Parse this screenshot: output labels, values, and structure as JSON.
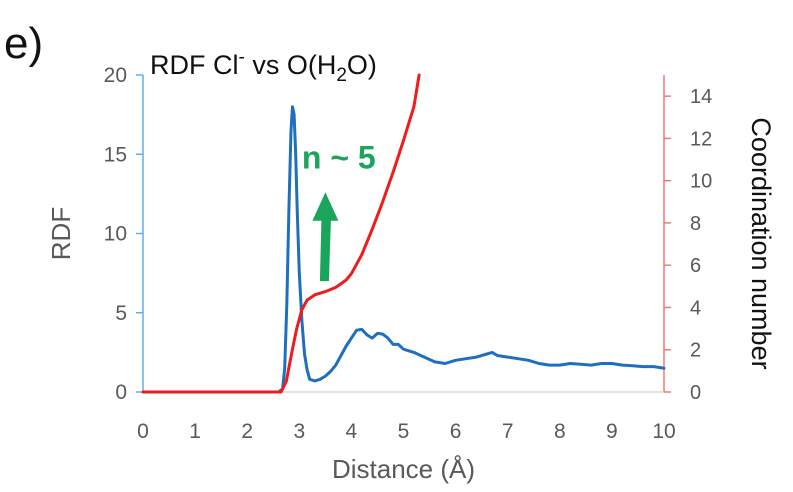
{
  "panel_label": "e)",
  "chart_data": {
    "type": "line",
    "title": {
      "prefix": "RDF Cl",
      "sup": "-",
      "middle": " vs O(H",
      "sub": "2",
      "suffix": "O)"
    },
    "xlabel": "Distance (Å)",
    "ylabel_left": "RDF",
    "ylabel_right": "Coordination number",
    "xlim": [
      0,
      10
    ],
    "ylim_left": [
      0,
      20
    ],
    "ylim_right": [
      0,
      15
    ],
    "x_ticks": [
      0,
      1,
      2,
      3,
      4,
      5,
      6,
      7,
      8,
      9,
      10
    ],
    "y_left_ticks": [
      0,
      5,
      10,
      15,
      20
    ],
    "y_right_ticks": [
      0,
      2,
      4,
      6,
      8,
      10,
      12,
      14
    ],
    "grid": false,
    "series": [
      {
        "axis": "left",
        "color": "#1f6fbf",
        "x": [
          2.6,
          2.68,
          2.72,
          2.76,
          2.8,
          2.84,
          2.87,
          2.9,
          2.93,
          2.96,
          3.0,
          3.05,
          3.1,
          3.15,
          3.2,
          3.3,
          3.4,
          3.5,
          3.6,
          3.7,
          3.8,
          3.9,
          4.0,
          4.1,
          4.2,
          4.3,
          4.4,
          4.5,
          4.6,
          4.7,
          4.8,
          4.9,
          5.0,
          5.2,
          5.4,
          5.6,
          5.8,
          6.0,
          6.2,
          6.4,
          6.6,
          6.7,
          6.8,
          7.0,
          7.2,
          7.4,
          7.6,
          7.8,
          8.0,
          8.2,
          8.4,
          8.6,
          8.8,
          9.0,
          9.2,
          9.4,
          9.6,
          9.8,
          10.0
        ],
        "y": [
          0,
          0.2,
          1.5,
          5.5,
          11.5,
          16.5,
          18.0,
          17.5,
          15.0,
          11.5,
          7.5,
          4.5,
          2.4,
          1.4,
          0.8,
          0.7,
          0.8,
          1.0,
          1.3,
          1.7,
          2.3,
          2.9,
          3.4,
          3.9,
          3.95,
          3.6,
          3.4,
          3.7,
          3.65,
          3.4,
          3.0,
          3.0,
          2.7,
          2.5,
          2.2,
          1.9,
          1.8,
          2.0,
          2.1,
          2.2,
          2.4,
          2.5,
          2.3,
          2.2,
          2.1,
          2.0,
          1.8,
          1.7,
          1.7,
          1.8,
          1.75,
          1.7,
          1.8,
          1.8,
          1.7,
          1.65,
          1.6,
          1.6,
          1.5
        ]
      },
      {
        "axis": "right",
        "color": "#ee1c1c",
        "x": [
          0,
          2.65,
          2.75,
          2.85,
          2.95,
          3.05,
          3.15,
          3.3,
          3.5,
          3.7,
          3.9,
          4.0,
          4.2,
          4.4,
          4.6,
          4.8,
          5.0,
          5.2,
          5.3
        ],
        "y": [
          0,
          0,
          0.5,
          1.8,
          3.0,
          3.9,
          4.35,
          4.6,
          4.75,
          4.95,
          5.3,
          5.6,
          6.5,
          7.7,
          9.0,
          10.4,
          11.9,
          13.5,
          15.0
        ]
      }
    ],
    "annotations": [
      {
        "text": "n ~ 5",
        "color": "#1aa55a"
      }
    ]
  }
}
